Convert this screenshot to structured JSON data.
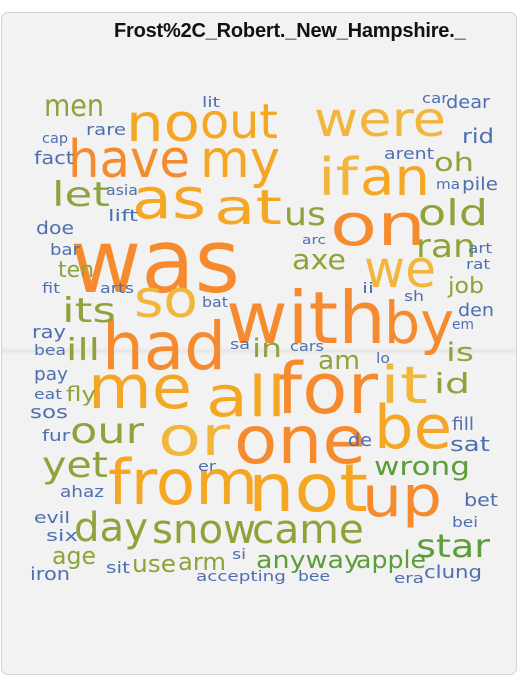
{
  "title": "Frost%2C_Robert._New_Hampshire._",
  "colors": {
    "orange": "#f58a2e",
    "amber": "#f5a623",
    "gold": "#f2b63c",
    "olive": "#8ea33b",
    "green": "#5b9e3a",
    "blue": "#4f6fb0",
    "background": "#f2f2f2"
  },
  "words": [
    {
      "text": "was",
      "color": "orange"
    },
    {
      "text": "with",
      "color": "orange"
    },
    {
      "text": "had",
      "color": "orange"
    },
    {
      "text": "for",
      "color": "orange"
    },
    {
      "text": "no",
      "color": "amber"
    },
    {
      "text": "out",
      "color": "amber"
    },
    {
      "text": "were",
      "color": "gold"
    },
    {
      "text": "have",
      "color": "orange"
    },
    {
      "text": "my",
      "color": "amber"
    },
    {
      "text": "if",
      "color": "gold"
    },
    {
      "text": "an",
      "color": "amber"
    },
    {
      "text": "as",
      "color": "amber"
    },
    {
      "text": "at",
      "color": "amber"
    },
    {
      "text": "on",
      "color": "orange"
    },
    {
      "text": "we",
      "color": "gold"
    },
    {
      "text": "so",
      "color": "gold"
    },
    {
      "text": "by",
      "color": "orange"
    },
    {
      "text": "me",
      "color": "amber"
    },
    {
      "text": "all",
      "color": "amber"
    },
    {
      "text": "it",
      "color": "gold"
    },
    {
      "text": "or",
      "color": "gold"
    },
    {
      "text": "one",
      "color": "orange"
    },
    {
      "text": "be",
      "color": "amber"
    },
    {
      "text": "from",
      "color": "amber"
    },
    {
      "text": "not",
      "color": "amber"
    },
    {
      "text": "up",
      "color": "orange"
    },
    {
      "text": "men",
      "color": "olive"
    },
    {
      "text": "let",
      "color": "olive"
    },
    {
      "text": "us",
      "color": "olive"
    },
    {
      "text": "oh",
      "color": "olive"
    },
    {
      "text": "old",
      "color": "olive"
    },
    {
      "text": "ran",
      "color": "olive"
    },
    {
      "text": "its",
      "color": "olive"
    },
    {
      "text": "axe",
      "color": "olive"
    },
    {
      "text": "ten",
      "color": "olive"
    },
    {
      "text": "ill",
      "color": "olive"
    },
    {
      "text": "in",
      "color": "olive"
    },
    {
      "text": "am",
      "color": "olive"
    },
    {
      "text": "is",
      "color": "olive"
    },
    {
      "text": "id",
      "color": "olive"
    },
    {
      "text": "fly",
      "color": "olive"
    },
    {
      "text": "our",
      "color": "olive"
    },
    {
      "text": "yet",
      "color": "olive"
    },
    {
      "text": "wrong",
      "color": "green"
    },
    {
      "text": "day",
      "color": "olive"
    },
    {
      "text": "snow",
      "color": "olive"
    },
    {
      "text": "came",
      "color": "olive"
    },
    {
      "text": "star",
      "color": "green"
    },
    {
      "text": "age",
      "color": "olive"
    },
    {
      "text": "use",
      "color": "olive"
    },
    {
      "text": "arm",
      "color": "olive"
    },
    {
      "text": "anyway",
      "color": "green"
    },
    {
      "text": "apple",
      "color": "green"
    },
    {
      "text": "job",
      "color": "olive"
    },
    {
      "text": "lit",
      "color": "blue"
    },
    {
      "text": "car",
      "color": "blue"
    },
    {
      "text": "dear",
      "color": "blue"
    },
    {
      "text": "rare",
      "color": "blue"
    },
    {
      "text": "cap",
      "color": "blue"
    },
    {
      "text": "rid",
      "color": "blue"
    },
    {
      "text": "fact",
      "color": "blue"
    },
    {
      "text": "arent",
      "color": "blue"
    },
    {
      "text": "ma",
      "color": "blue"
    },
    {
      "text": "pile",
      "color": "blue"
    },
    {
      "text": "asia",
      "color": "blue"
    },
    {
      "text": "lift",
      "color": "blue"
    },
    {
      "text": "doe",
      "color": "blue"
    },
    {
      "text": "bar",
      "color": "blue"
    },
    {
      "text": "arc",
      "color": "blue"
    },
    {
      "text": "art",
      "color": "blue"
    },
    {
      "text": "rat",
      "color": "blue"
    },
    {
      "text": "fit",
      "color": "blue"
    },
    {
      "text": "arts",
      "color": "blue"
    },
    {
      "text": "ii",
      "color": "blue"
    },
    {
      "text": "sh",
      "color": "blue"
    },
    {
      "text": "bat",
      "color": "blue"
    },
    {
      "text": "den",
      "color": "blue"
    },
    {
      "text": "ray",
      "color": "blue"
    },
    {
      "text": "em",
      "color": "blue"
    },
    {
      "text": "bea",
      "color": "blue"
    },
    {
      "text": "sa",
      "color": "blue"
    },
    {
      "text": "cars",
      "color": "blue"
    },
    {
      "text": "lo",
      "color": "blue"
    },
    {
      "text": "pay",
      "color": "blue"
    },
    {
      "text": "eat",
      "color": "blue"
    },
    {
      "text": "sos",
      "color": "blue"
    },
    {
      "text": "fill",
      "color": "blue"
    },
    {
      "text": "fur",
      "color": "blue"
    },
    {
      "text": "de",
      "color": "blue"
    },
    {
      "text": "sat",
      "color": "blue"
    },
    {
      "text": "er",
      "color": "blue"
    },
    {
      "text": "ahaz",
      "color": "blue"
    },
    {
      "text": "bet",
      "color": "blue"
    },
    {
      "text": "evil",
      "color": "blue"
    },
    {
      "text": "bei",
      "color": "blue"
    },
    {
      "text": "six",
      "color": "blue"
    },
    {
      "text": "si",
      "color": "blue"
    },
    {
      "text": "sit",
      "color": "blue"
    },
    {
      "text": "iron",
      "color": "blue"
    },
    {
      "text": "accepting",
      "color": "blue"
    },
    {
      "text": "bee",
      "color": "blue"
    },
    {
      "text": "era",
      "color": "blue"
    },
    {
      "text": "clung",
      "color": "blue"
    }
  ]
}
